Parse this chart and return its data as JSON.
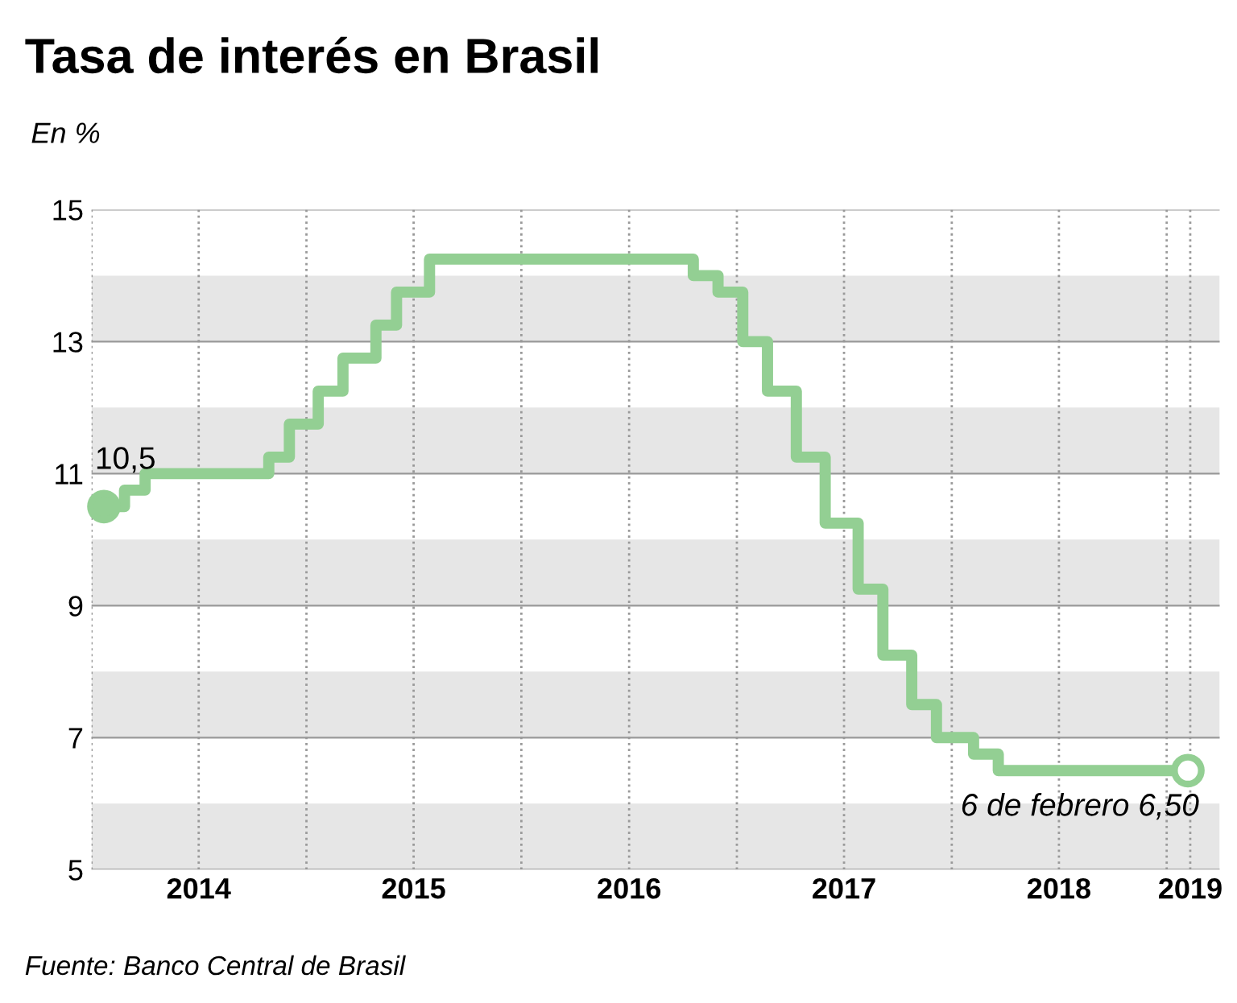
{
  "chart_data": {
    "type": "step",
    "title": "Tasa de interés en Brasil",
    "subtitle": "En %",
    "x": [
      "2014-01-22",
      "2014-02-26",
      "2014-04-02",
      "2014-10-29",
      "2014-12-03",
      "2015-01-21",
      "2015-03-04",
      "2015-04-29",
      "2015-06-03",
      "2015-07-29",
      "2016-10-19",
      "2016-11-30",
      "2017-01-11",
      "2017-02-22",
      "2017-04-12",
      "2017-05-31",
      "2017-07-26",
      "2017-09-06",
      "2017-10-25",
      "2017-12-06",
      "2018-02-07",
      "2018-03-21",
      "2019-02-06"
    ],
    "series": [
      {
        "color": "#93cf93",
        "values": [
          10.5,
          10.75,
          11.0,
          11.25,
          11.75,
          12.25,
          12.75,
          13.25,
          13.75,
          14.25,
          14.0,
          13.75,
          13.0,
          12.25,
          11.25,
          10.25,
          9.25,
          8.25,
          7.5,
          7.0,
          6.75,
          6.5,
          6.5
        ]
      }
    ],
    "xlim": [
      "2014-01-01",
      "2019-04-01"
    ],
    "xticks": [
      {
        "value": "2014-01-01",
        "label": null
      },
      {
        "value": "2014-07-02",
        "label": "2014"
      },
      {
        "value": "2015-01-01",
        "label": null
      },
      {
        "value": "2015-07-02",
        "label": "2015"
      },
      {
        "value": "2016-01-01",
        "label": null
      },
      {
        "value": "2016-07-02",
        "label": "2016"
      },
      {
        "value": "2017-01-01",
        "label": null
      },
      {
        "value": "2017-07-02",
        "label": "2017"
      },
      {
        "value": "2018-01-01",
        "label": null
      },
      {
        "value": "2018-07-02",
        "label": "2018"
      },
      {
        "value": "2019-01-01",
        "label": null
      },
      {
        "value": "2019-02-10",
        "label": "2019"
      }
    ],
    "ylim": [
      5,
      15
    ],
    "yticks": [
      5,
      7,
      9,
      11,
      13,
      15
    ],
    "grid": true,
    "bands": [
      {
        "axis": "y",
        "from": 5,
        "to": 6,
        "color": "#e6e6e6"
      },
      {
        "axis": "y",
        "from": 7,
        "to": 8,
        "color": "#e6e6e6"
      },
      {
        "axis": "y",
        "from": 9,
        "to": 10,
        "color": "#e6e6e6"
      },
      {
        "axis": "y",
        "from": 11,
        "to": 12,
        "color": "#e6e6e6"
      },
      {
        "axis": "y",
        "from": 13,
        "to": 14,
        "color": "#e6e6e6"
      }
    ],
    "annotations": [
      {
        "text": "10,5",
        "x": "2014-01-22",
        "y": 10.5
      },
      {
        "text": "6 de febrero 6,50",
        "x": "2019-02-06",
        "y": 6.5
      },
      "Fuente: Banco Central de Brasil"
    ]
  }
}
